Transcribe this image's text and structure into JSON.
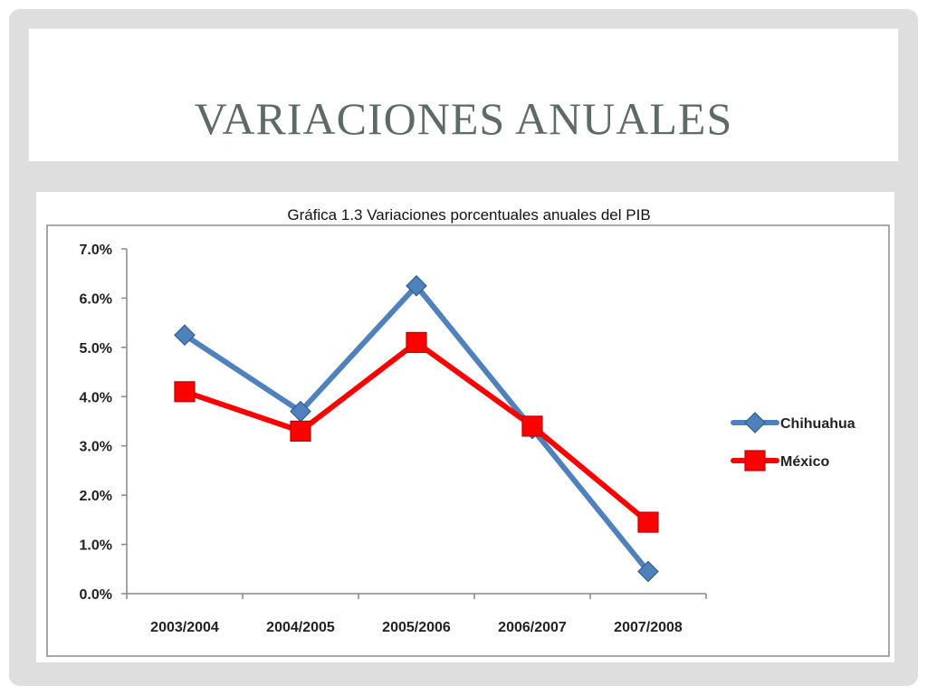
{
  "slide": {
    "title": "Variaciones anuales"
  },
  "chart_data": {
    "type": "line",
    "title": "Gráfica 1.3 Variaciones porcentuales anuales del PIB",
    "xlabel": "",
    "ylabel": "",
    "categories": [
      "2003/2004",
      "2004/2005",
      "2005/2006",
      "2006/2007",
      "2007/2008"
    ],
    "ylim": [
      0,
      7
    ],
    "yticks": [
      0,
      1,
      2,
      3,
      4,
      5,
      6,
      7
    ],
    "ytick_labels": [
      "0.0%",
      "1.0%",
      "2.0%",
      "3.0%",
      "4.0%",
      "5.0%",
      "6.0%",
      "7.0%"
    ],
    "grid": false,
    "legend_position": "right",
    "series": [
      {
        "name": "Chihuahua",
        "values": [
          5.25,
          3.7,
          6.25,
          3.35,
          0.45
        ],
        "color": "#4f81bd",
        "marker": "diamond"
      },
      {
        "name": "México",
        "values": [
          4.1,
          3.3,
          5.1,
          3.4,
          1.45
        ],
        "color": "#ff0000",
        "marker": "square"
      }
    ]
  }
}
